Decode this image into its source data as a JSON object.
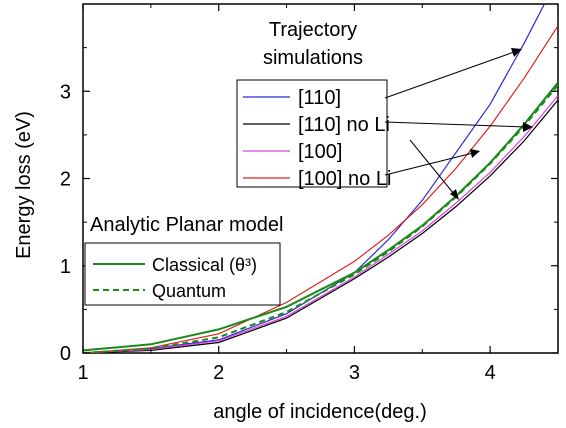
{
  "chart_data": {
    "type": "line",
    "xlabel": "angle of incidence(deg.)",
    "ylabel": "Energy loss (eV)",
    "xlim": [
      1,
      4.5
    ],
    "ylim": [
      0,
      4
    ],
    "x_ticks": [
      "1",
      "2",
      "3",
      "4"
    ],
    "y_ticks": [
      "0",
      "1",
      "2",
      "3"
    ],
    "grid": false,
    "legend_top": {
      "title_line1": "Trajectory",
      "title_line2": "simulations",
      "placement": "upper-center"
    },
    "legend_bottom": {
      "title": "Analytic Planar model",
      "placement": "middle-left"
    },
    "series": [
      {
        "name": "[110]",
        "group": "trajectory",
        "color": "#2a2ad6",
        "dash": "solid",
        "x": [
          1.0,
          1.5,
          2.0,
          2.5,
          3.0,
          3.25,
          3.5,
          3.75,
          4.0,
          4.25,
          4.5
        ],
        "y": [
          0.0,
          0.05,
          0.15,
          0.45,
          0.92,
          1.3,
          1.75,
          2.3,
          2.85,
          3.55,
          4.3
        ]
      },
      {
        "name": "[110] no Li",
        "group": "trajectory",
        "color": "#000000",
        "dash": "solid",
        "x": [
          1.0,
          1.5,
          2.0,
          2.5,
          3.0,
          3.25,
          3.5,
          3.75,
          4.0,
          4.25,
          4.5
        ],
        "y": [
          0.0,
          0.03,
          0.12,
          0.4,
          0.85,
          1.1,
          1.37,
          1.68,
          2.03,
          2.43,
          2.9
        ]
      },
      {
        "name": "[100]",
        "group": "trajectory",
        "color": "#e040e0",
        "dash": "solid",
        "x": [
          1.0,
          1.5,
          2.0,
          2.5,
          3.0,
          3.25,
          3.5,
          3.75,
          4.0,
          4.25,
          4.5
        ],
        "y": [
          0.0,
          0.04,
          0.14,
          0.42,
          0.87,
          1.13,
          1.4,
          1.72,
          2.07,
          2.48,
          2.95
        ]
      },
      {
        "name": "[100] no Li",
        "group": "trajectory",
        "color": "#e02020",
        "dash": "solid",
        "x": [
          1.0,
          1.5,
          2.0,
          2.5,
          3.0,
          3.25,
          3.5,
          3.75,
          4.0,
          4.25,
          4.5
        ],
        "y": [
          0.0,
          0.06,
          0.22,
          0.58,
          1.05,
          1.35,
          1.7,
          2.12,
          2.6,
          3.15,
          3.75
        ]
      },
      {
        "name": "Classical (θ³)",
        "group": "analytic",
        "color": "#1a8a1a",
        "dash": "solid",
        "x": [
          1.0,
          1.5,
          2.0,
          2.5,
          3.0,
          3.25,
          3.5,
          3.75,
          4.0,
          4.25,
          4.5
        ],
        "y": [
          0.03,
          0.1,
          0.27,
          0.53,
          0.92,
          1.18,
          1.46,
          1.8,
          2.18,
          2.62,
          3.1
        ]
      },
      {
        "name": "Quantum",
        "group": "analytic",
        "color": "#1a8a1a",
        "dash": "dashed",
        "x": [
          1.0,
          1.5,
          2.0,
          2.5,
          3.0,
          3.25,
          3.5,
          3.75,
          4.0,
          4.25,
          4.5
        ],
        "y": [
          0.0,
          0.05,
          0.18,
          0.47,
          0.9,
          1.16,
          1.45,
          1.79,
          2.17,
          2.6,
          3.07
        ]
      }
    ]
  }
}
